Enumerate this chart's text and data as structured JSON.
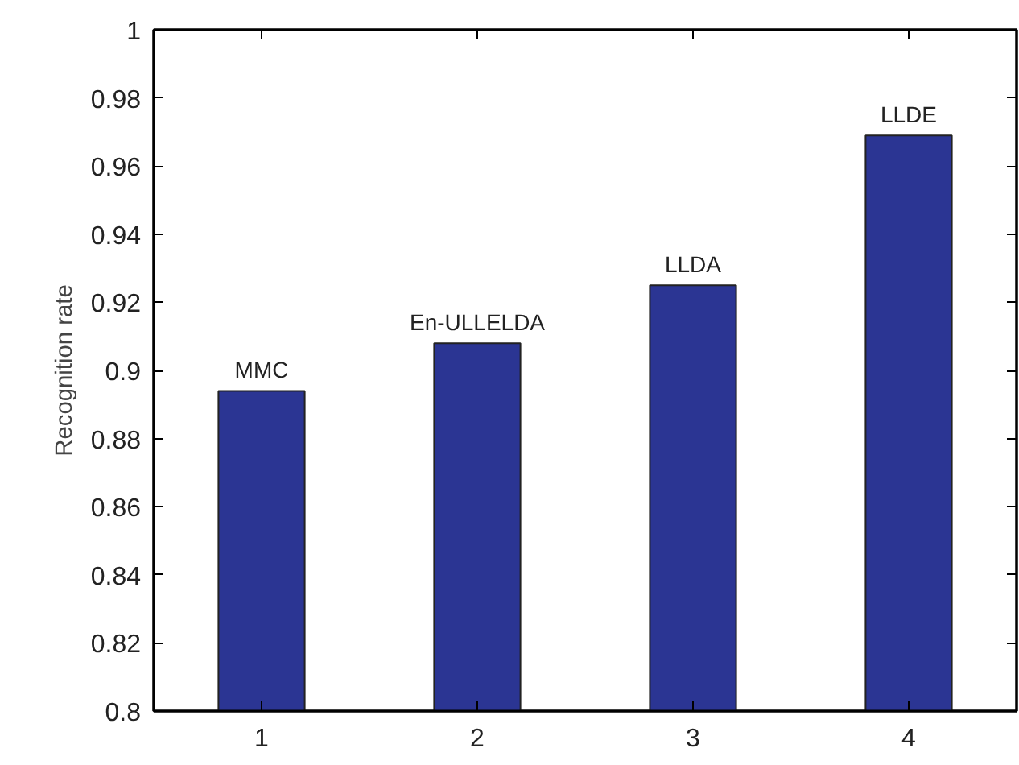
{
  "chart_data": {
    "type": "bar",
    "ylabel": "Recognition rate",
    "categories": [
      "1",
      "2",
      "3",
      "4"
    ],
    "series": [
      {
        "color": "#2b3593",
        "values": [
          0.894,
          0.908,
          0.925,
          0.969
        ]
      }
    ],
    "ylim": [
      0.8,
      1
    ],
    "yticks": [
      0.8,
      0.82,
      0.84,
      0.86,
      0.88,
      0.9,
      0.92,
      0.94,
      0.96,
      0.98,
      1
    ],
    "annotations": [
      {
        "text": "MMC",
        "x": "1",
        "y": 0.894
      },
      {
        "text": "En-ULLELDA",
        "x": "2",
        "y": 0.908
      },
      {
        "text": "LLDA",
        "x": "3",
        "y": 0.925
      },
      {
        "text": "LLDE",
        "x": "4",
        "y": 0.969
      }
    ],
    "grid": false
  }
}
